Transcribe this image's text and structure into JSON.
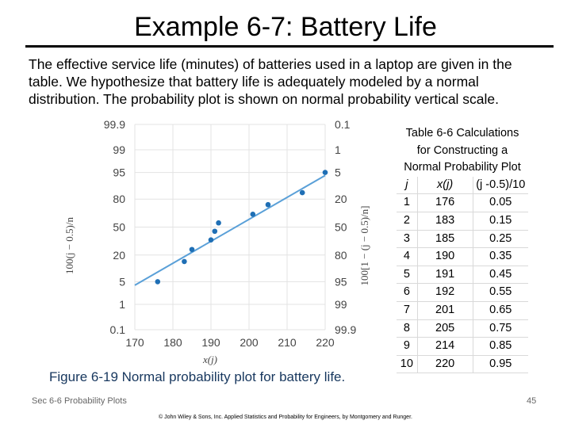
{
  "slide": {
    "title": "Example 6-7: Battery Life",
    "body_lines": [
      "The effective service life (minutes) of batteries used in a laptop are given in the",
      "table.  We hypothesize that battery life is adequately modeled by a normal",
      "distribution.  The probability plot is shown on normal probability vertical scale."
    ],
    "figure_caption": "Figure 6-19  Normal probability plot for battery life.",
    "footer_left": "Sec 6-6 Probability Plots",
    "page_number": "45",
    "copyright": "© John Wiley & Sons, Inc.  Applied Statistics and Probability for Engineers, by Montgomery and Runger."
  },
  "table": {
    "caption_lines": [
      "Table 6-6  Calculations",
      "for Constructing a",
      "Normal Probability Plot"
    ],
    "headers": [
      "j",
      "x(j)",
      "(j -0.5)/10"
    ],
    "rows": [
      [
        "1",
        "176",
        "0.05"
      ],
      [
        "2",
        "183",
        "0.15"
      ],
      [
        "3",
        "185",
        "0.25"
      ],
      [
        "4",
        "190",
        "0.35"
      ],
      [
        "5",
        "191",
        "0.45"
      ],
      [
        "6",
        "192",
        "0.55"
      ],
      [
        "7",
        "201",
        "0.65"
      ],
      [
        "8",
        "205",
        "0.75"
      ],
      [
        "9",
        "214",
        "0.85"
      ],
      [
        "10",
        "220",
        "0.95"
      ]
    ]
  },
  "chart_data": {
    "type": "scatter",
    "title": "",
    "xlabel": "x(j)",
    "ylabel_left": "100(j − 0.5)/n",
    "ylabel_right": "100[1 − (j − 0.5)/n]",
    "xlim": [
      170,
      220
    ],
    "x_ticks": [
      "170",
      "180",
      "190",
      "200",
      "210",
      "220"
    ],
    "y_ticks_left": [
      "99.9",
      "99",
      "95",
      "80",
      "50",
      "20",
      "5",
      "1",
      "0.1"
    ],
    "y_ticks_right": [
      "0.1",
      "1",
      "5",
      "20",
      "50",
      "80",
      "95",
      "99",
      "99.9"
    ],
    "y_scale": "normal-probability",
    "points": [
      {
        "x": 176,
        "y": 5
      },
      {
        "x": 183,
        "y": 15
      },
      {
        "x": 185,
        "y": 25
      },
      {
        "x": 190,
        "y": 35
      },
      {
        "x": 191,
        "y": 45
      },
      {
        "x": 192,
        "y": 55
      },
      {
        "x": 201,
        "y": 65
      },
      {
        "x": 205,
        "y": 75
      },
      {
        "x": 214,
        "y": 85
      },
      {
        "x": 220,
        "y": 95
      }
    ],
    "fit_line": {
      "x": [
        170,
        220
      ],
      "y": [
        4,
        94
      ]
    },
    "grid": true,
    "point_color": "#1f6fb5",
    "line_color": "#5aa0d8"
  }
}
